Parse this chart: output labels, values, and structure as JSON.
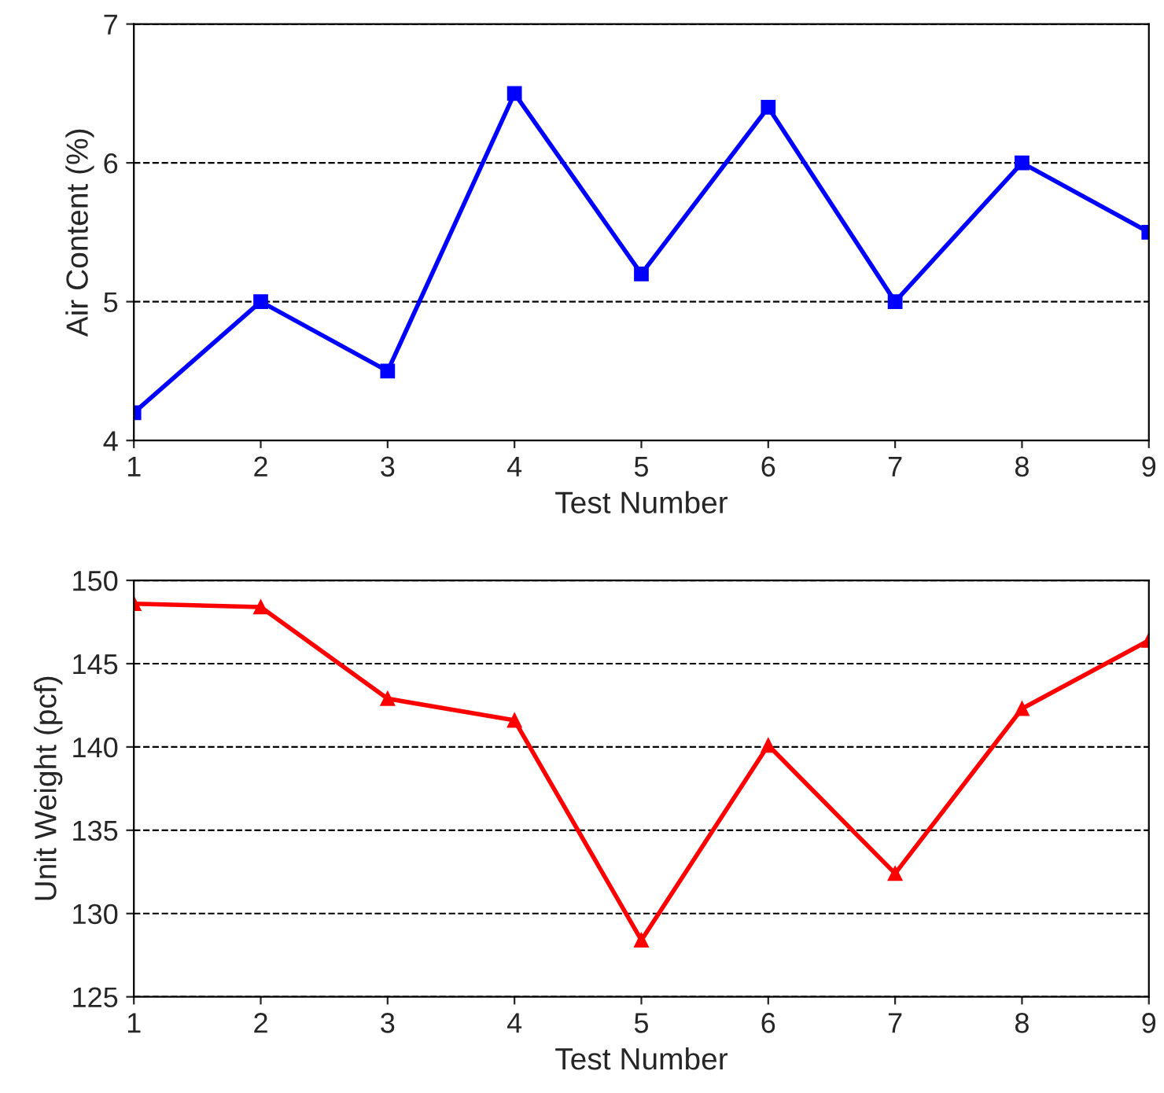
{
  "chart_data": [
    {
      "type": "line",
      "xlabel": "Test Number",
      "ylabel": "Air Content (%)",
      "x": [
        1,
        2,
        3,
        4,
        5,
        6,
        7,
        8,
        9
      ],
      "series": [
        {
          "color": "#0000ff",
          "values": [
            4.2,
            5.0,
            4.5,
            6.5,
            5.2,
            6.4,
            5.0,
            6.0,
            5.5
          ]
        }
      ],
      "xlim": [
        1,
        9
      ],
      "xticks": [
        1,
        2,
        3,
        4,
        5,
        6,
        7,
        8,
        9
      ],
      "ylim": [
        4,
        7
      ],
      "yticks": [
        4,
        5,
        6,
        7
      ],
      "grid": "y",
      "marker": "square",
      "line_style": "solid"
    },
    {
      "type": "line",
      "xlabel": "Test Number",
      "ylabel": "Unit Weight (pcf)",
      "x": [
        1,
        2,
        3,
        4,
        5,
        6,
        7,
        8,
        9
      ],
      "series": [
        {
          "color": "#ff0000",
          "values": [
            148.6,
            148.4,
            142.9,
            141.6,
            128.4,
            140.1,
            132.4,
            142.3,
            146.4
          ]
        }
      ],
      "xlim": [
        1,
        9
      ],
      "xticks": [
        1,
        2,
        3,
        4,
        5,
        6,
        7,
        8,
        9
      ],
      "ylim": [
        125,
        150
      ],
      "yticks": [
        125,
        130,
        135,
        140,
        145,
        150
      ],
      "grid": "y",
      "marker": "triangle",
      "line_style": "solid"
    }
  ]
}
